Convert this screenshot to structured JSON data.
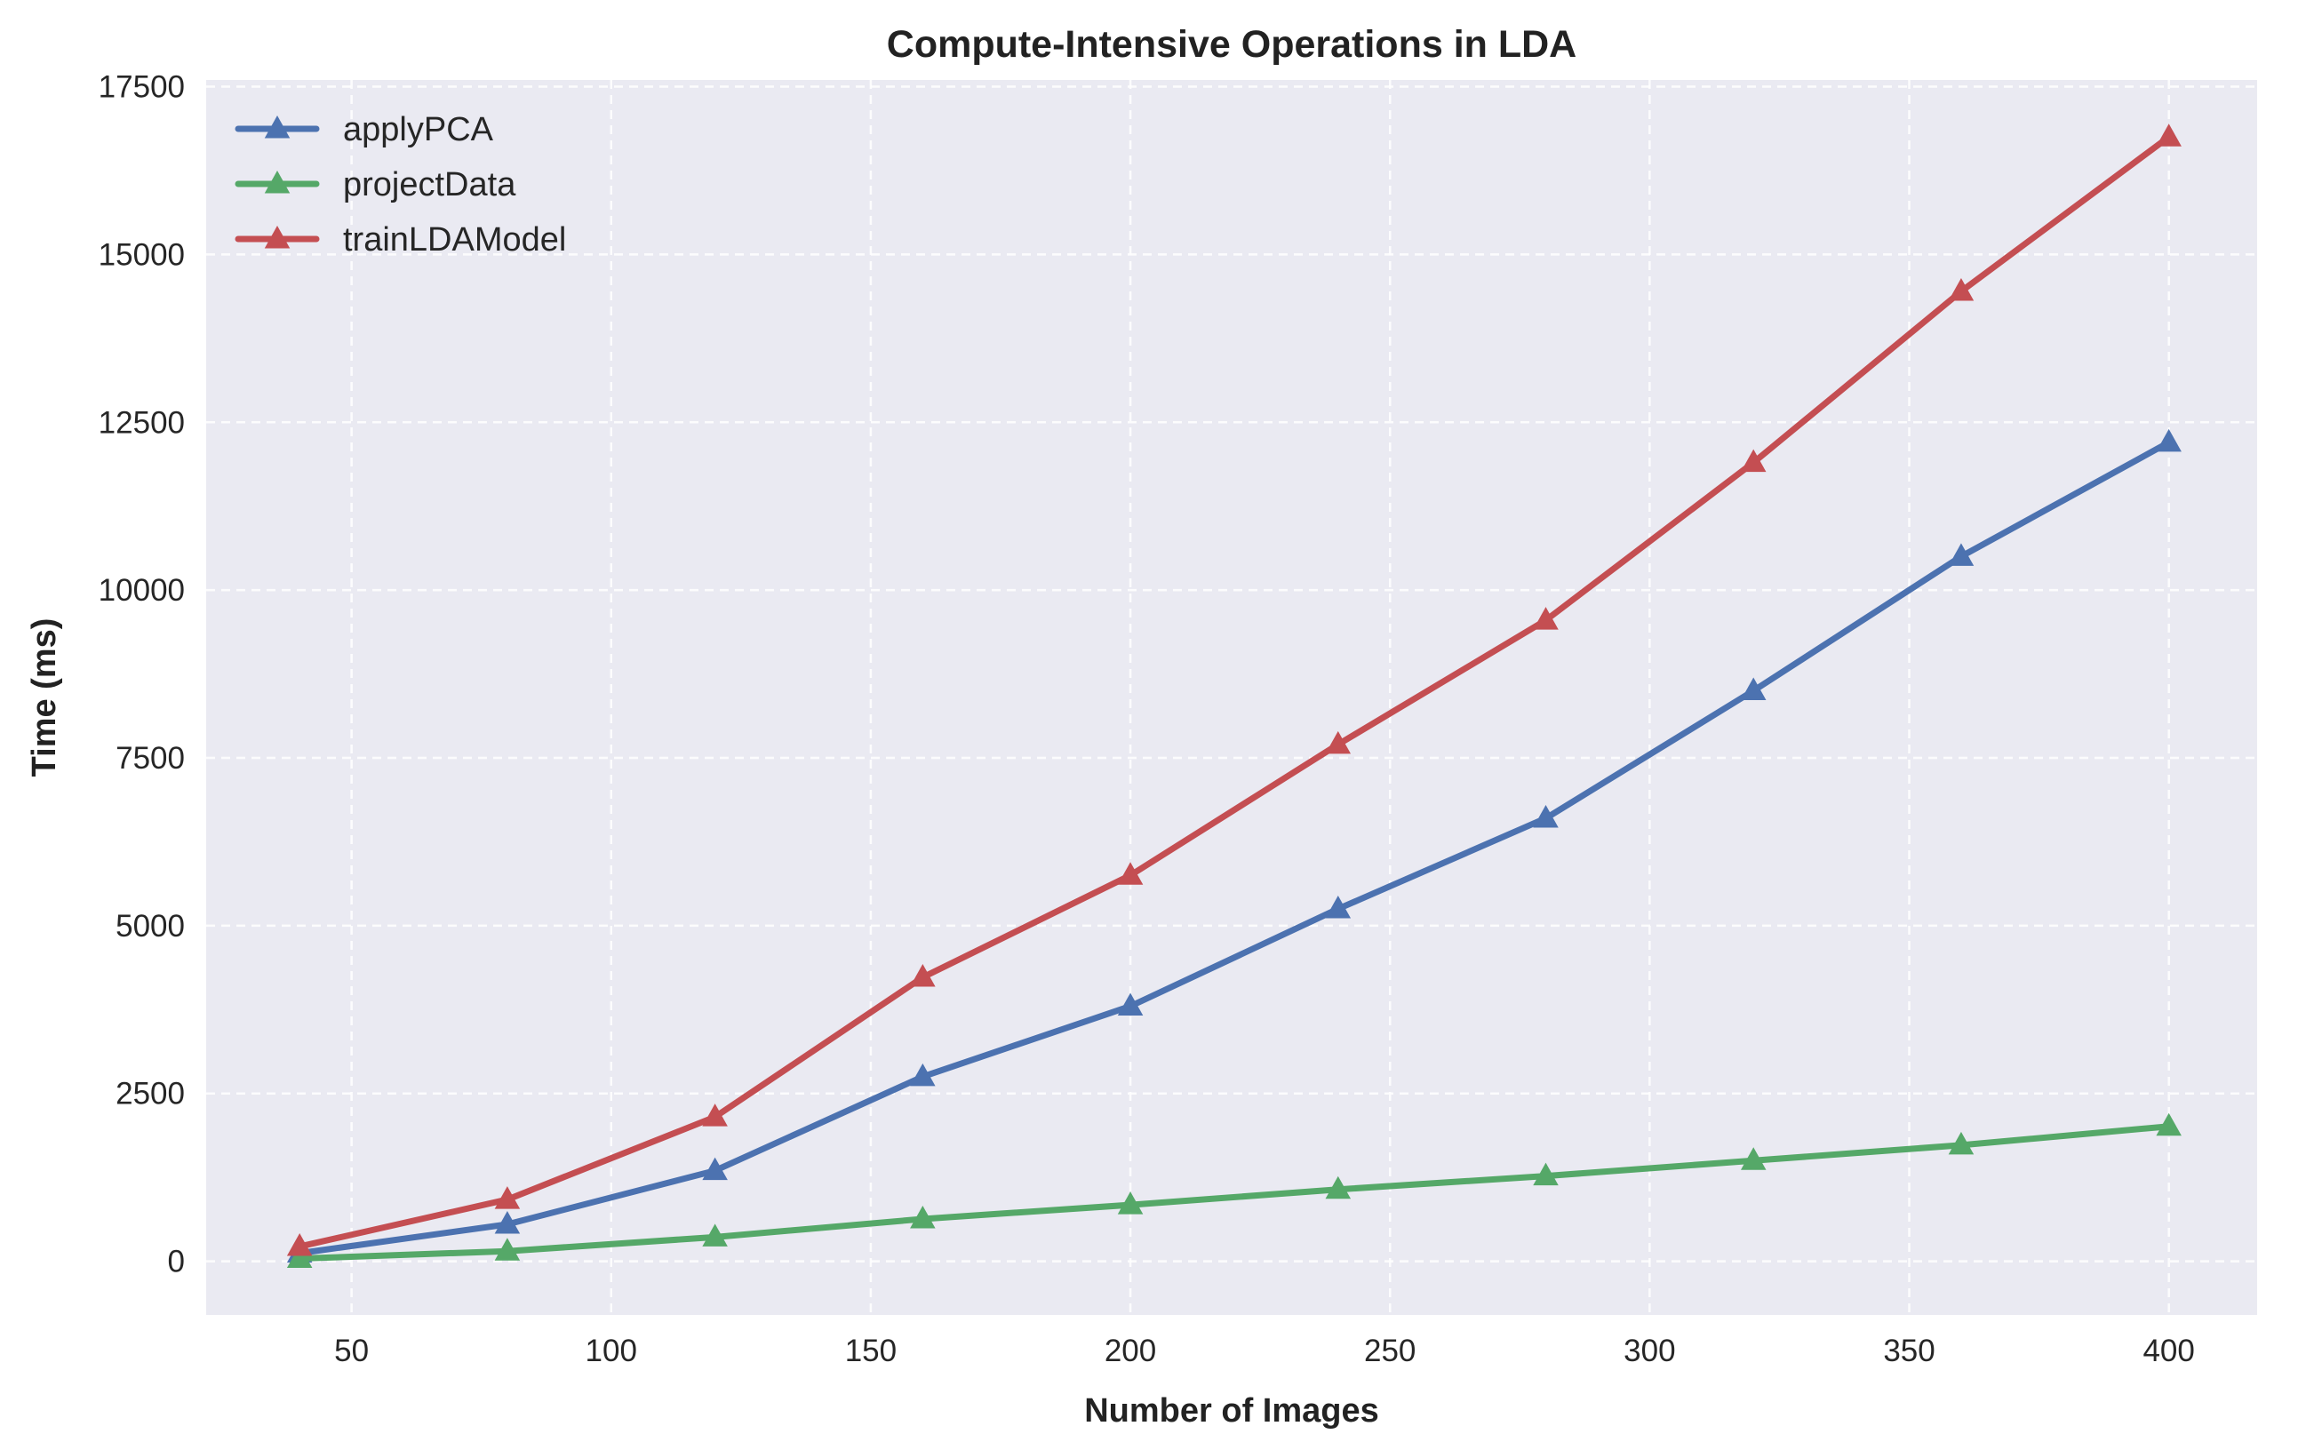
{
  "chart_data": {
    "type": "line",
    "title": "Compute-Intensive Operations in LDA",
    "xlabel": "Number of Images",
    "ylabel": "Time (ms)",
    "xlim": [
      22,
      417
    ],
    "ylim": [
      -800,
      17600
    ],
    "xticks": [
      50,
      100,
      150,
      200,
      250,
      300,
      350,
      400
    ],
    "yticks": [
      0,
      2500,
      5000,
      7500,
      10000,
      12500,
      15000,
      17500
    ],
    "grid": true,
    "legend_position": "top-left",
    "marker": "triangle",
    "x": [
      40,
      80,
      120,
      160,
      200,
      240,
      280,
      320,
      360,
      400
    ],
    "series": [
      {
        "name": "applyPCA",
        "color": "#4c72b0",
        "values": [
          120,
          550,
          1350,
          2750,
          3800,
          5250,
          6600,
          8500,
          10500,
          12200
        ]
      },
      {
        "name": "projectData",
        "color": "#55a868",
        "values": [
          40,
          150,
          360,
          630,
          840,
          1070,
          1270,
          1500,
          1730,
          2010
        ]
      },
      {
        "name": "trainLDAModel",
        "color": "#c44e52",
        "values": [
          220,
          920,
          2150,
          4230,
          5750,
          7700,
          9550,
          11900,
          14450,
          16750
        ]
      }
    ]
  }
}
